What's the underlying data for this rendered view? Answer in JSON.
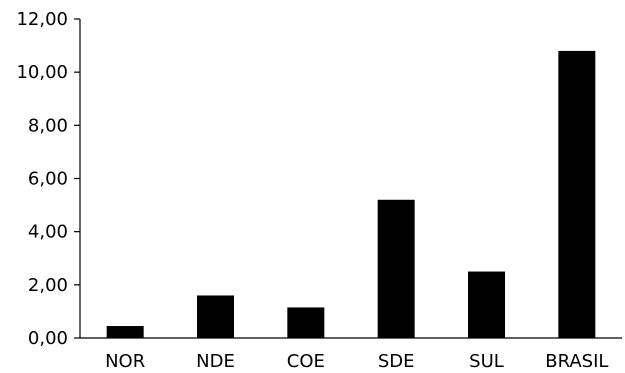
{
  "chart_data": {
    "type": "bar",
    "categories": [
      "NOR",
      "NDE",
      "COE",
      "SDE",
      "SUL",
      "BRASIL"
    ],
    "values": [
      0.45,
      1.6,
      1.15,
      5.2,
      2.5,
      10.8
    ],
    "ylim": [
      0,
      12
    ],
    "yticks": [
      "0,00",
      "2,00",
      "4,00",
      "6,00",
      "8,00",
      "10,00",
      "12,00"
    ],
    "grid": false,
    "legend": "none",
    "bar_color": "#000000"
  }
}
